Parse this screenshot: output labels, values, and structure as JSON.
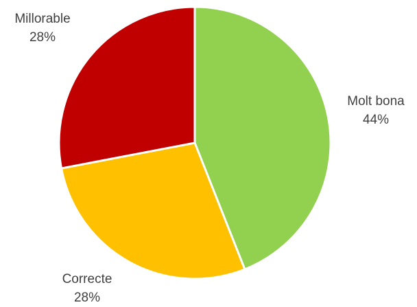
{
  "chart_data": {
    "type": "pie",
    "title": "",
    "slices": [
      {
        "label": "Molt bona",
        "value": 44,
        "display": "44%",
        "color": "#92d050"
      },
      {
        "label": "Correcte",
        "value": 28,
        "display": "28%",
        "color": "#ffc000"
      },
      {
        "label": "Millorable",
        "value": 28,
        "display": "28%",
        "color": "#c00000"
      }
    ],
    "start_angle_deg": 0,
    "direction": "clockwise",
    "legend": "none",
    "data_labels": "outside"
  }
}
